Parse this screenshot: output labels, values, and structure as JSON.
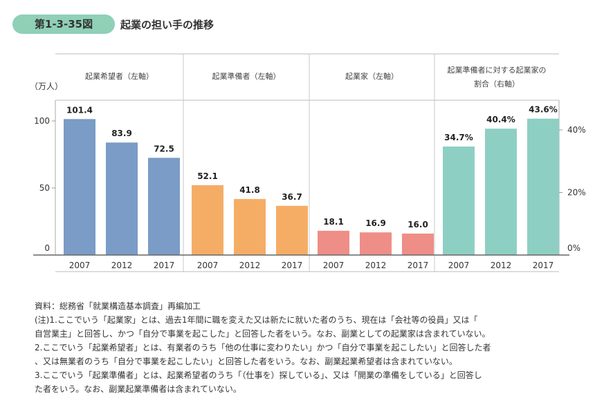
{
  "figure": {
    "number": "第1-3-35図",
    "title": "起業の担い手の推移"
  },
  "chart_data": {
    "type": "bar",
    "left_axis_unit": "（万人）",
    "left_ticks": [
      "0",
      "50",
      "100"
    ],
    "left_tick_values": [
      0,
      50,
      100
    ],
    "left_range": [
      0,
      100
    ],
    "right_ticks": [
      "0%",
      "20%",
      "40%"
    ],
    "right_tick_values": [
      0,
      20,
      40
    ],
    "right_range": [
      0,
      50
    ],
    "grid": false,
    "categories": [
      "2007",
      "2012",
      "2017"
    ],
    "groups": [
      {
        "name": "起業希望者（左軸）",
        "axis": "left",
        "color": "#7a9cc6",
        "values": [
          101.4,
          83.9,
          72.5
        ],
        "labels": [
          "101.4",
          "83.9",
          "72.5"
        ]
      },
      {
        "name": "起業準備者（左軸）",
        "axis": "left",
        "color": "#f5ad66",
        "values": [
          52.1,
          41.8,
          36.7
        ],
        "labels": [
          "52.1",
          "41.8",
          "36.7"
        ]
      },
      {
        "name": "起業家（左軸）",
        "axis": "left",
        "color": "#ee8e87",
        "values": [
          18.1,
          16.9,
          16.0
        ],
        "labels": [
          "18.1",
          "16.9",
          "16.0"
        ]
      },
      {
        "name": "起業準備者に対する起業家の",
        "name_line2": "割合（右軸）",
        "axis": "right",
        "color": "#8ecfc4",
        "values": [
          34.7,
          40.4,
          43.6
        ],
        "labels": [
          "34.7%",
          "40.4%",
          "43.6%"
        ]
      }
    ]
  },
  "notes": [
    "資料：総務省「就業構造基本調査」再編加工",
    "(注)1.ここでいう「起業家」とは、過去1年間に職を変えた又は新たに就いた者のうち、現在は「会社等の役員」又は「",
    "自営業主」と回答し、かつ「自分で事業を起こした」と回答した者をいう。なお、副業としての起業家は含まれていない。",
    "2.ここでいう「起業希望者」とは、有業者のうち「他の仕事に変わりたい」かつ「自分で事業を起こしたい」と回答した者",
    "、又は無業者のうち「自分で事業を起こしたい」と回答した者をいう。なお、副業起業希望者は含まれていない。",
    "3.ここでいう「起業準備者」とは、起業希望者のうち「（仕事を）探している」、又は「開業の準備をしている」と回答し",
    "た者をいう。なお、副業起業準備者は含まれていない。"
  ]
}
